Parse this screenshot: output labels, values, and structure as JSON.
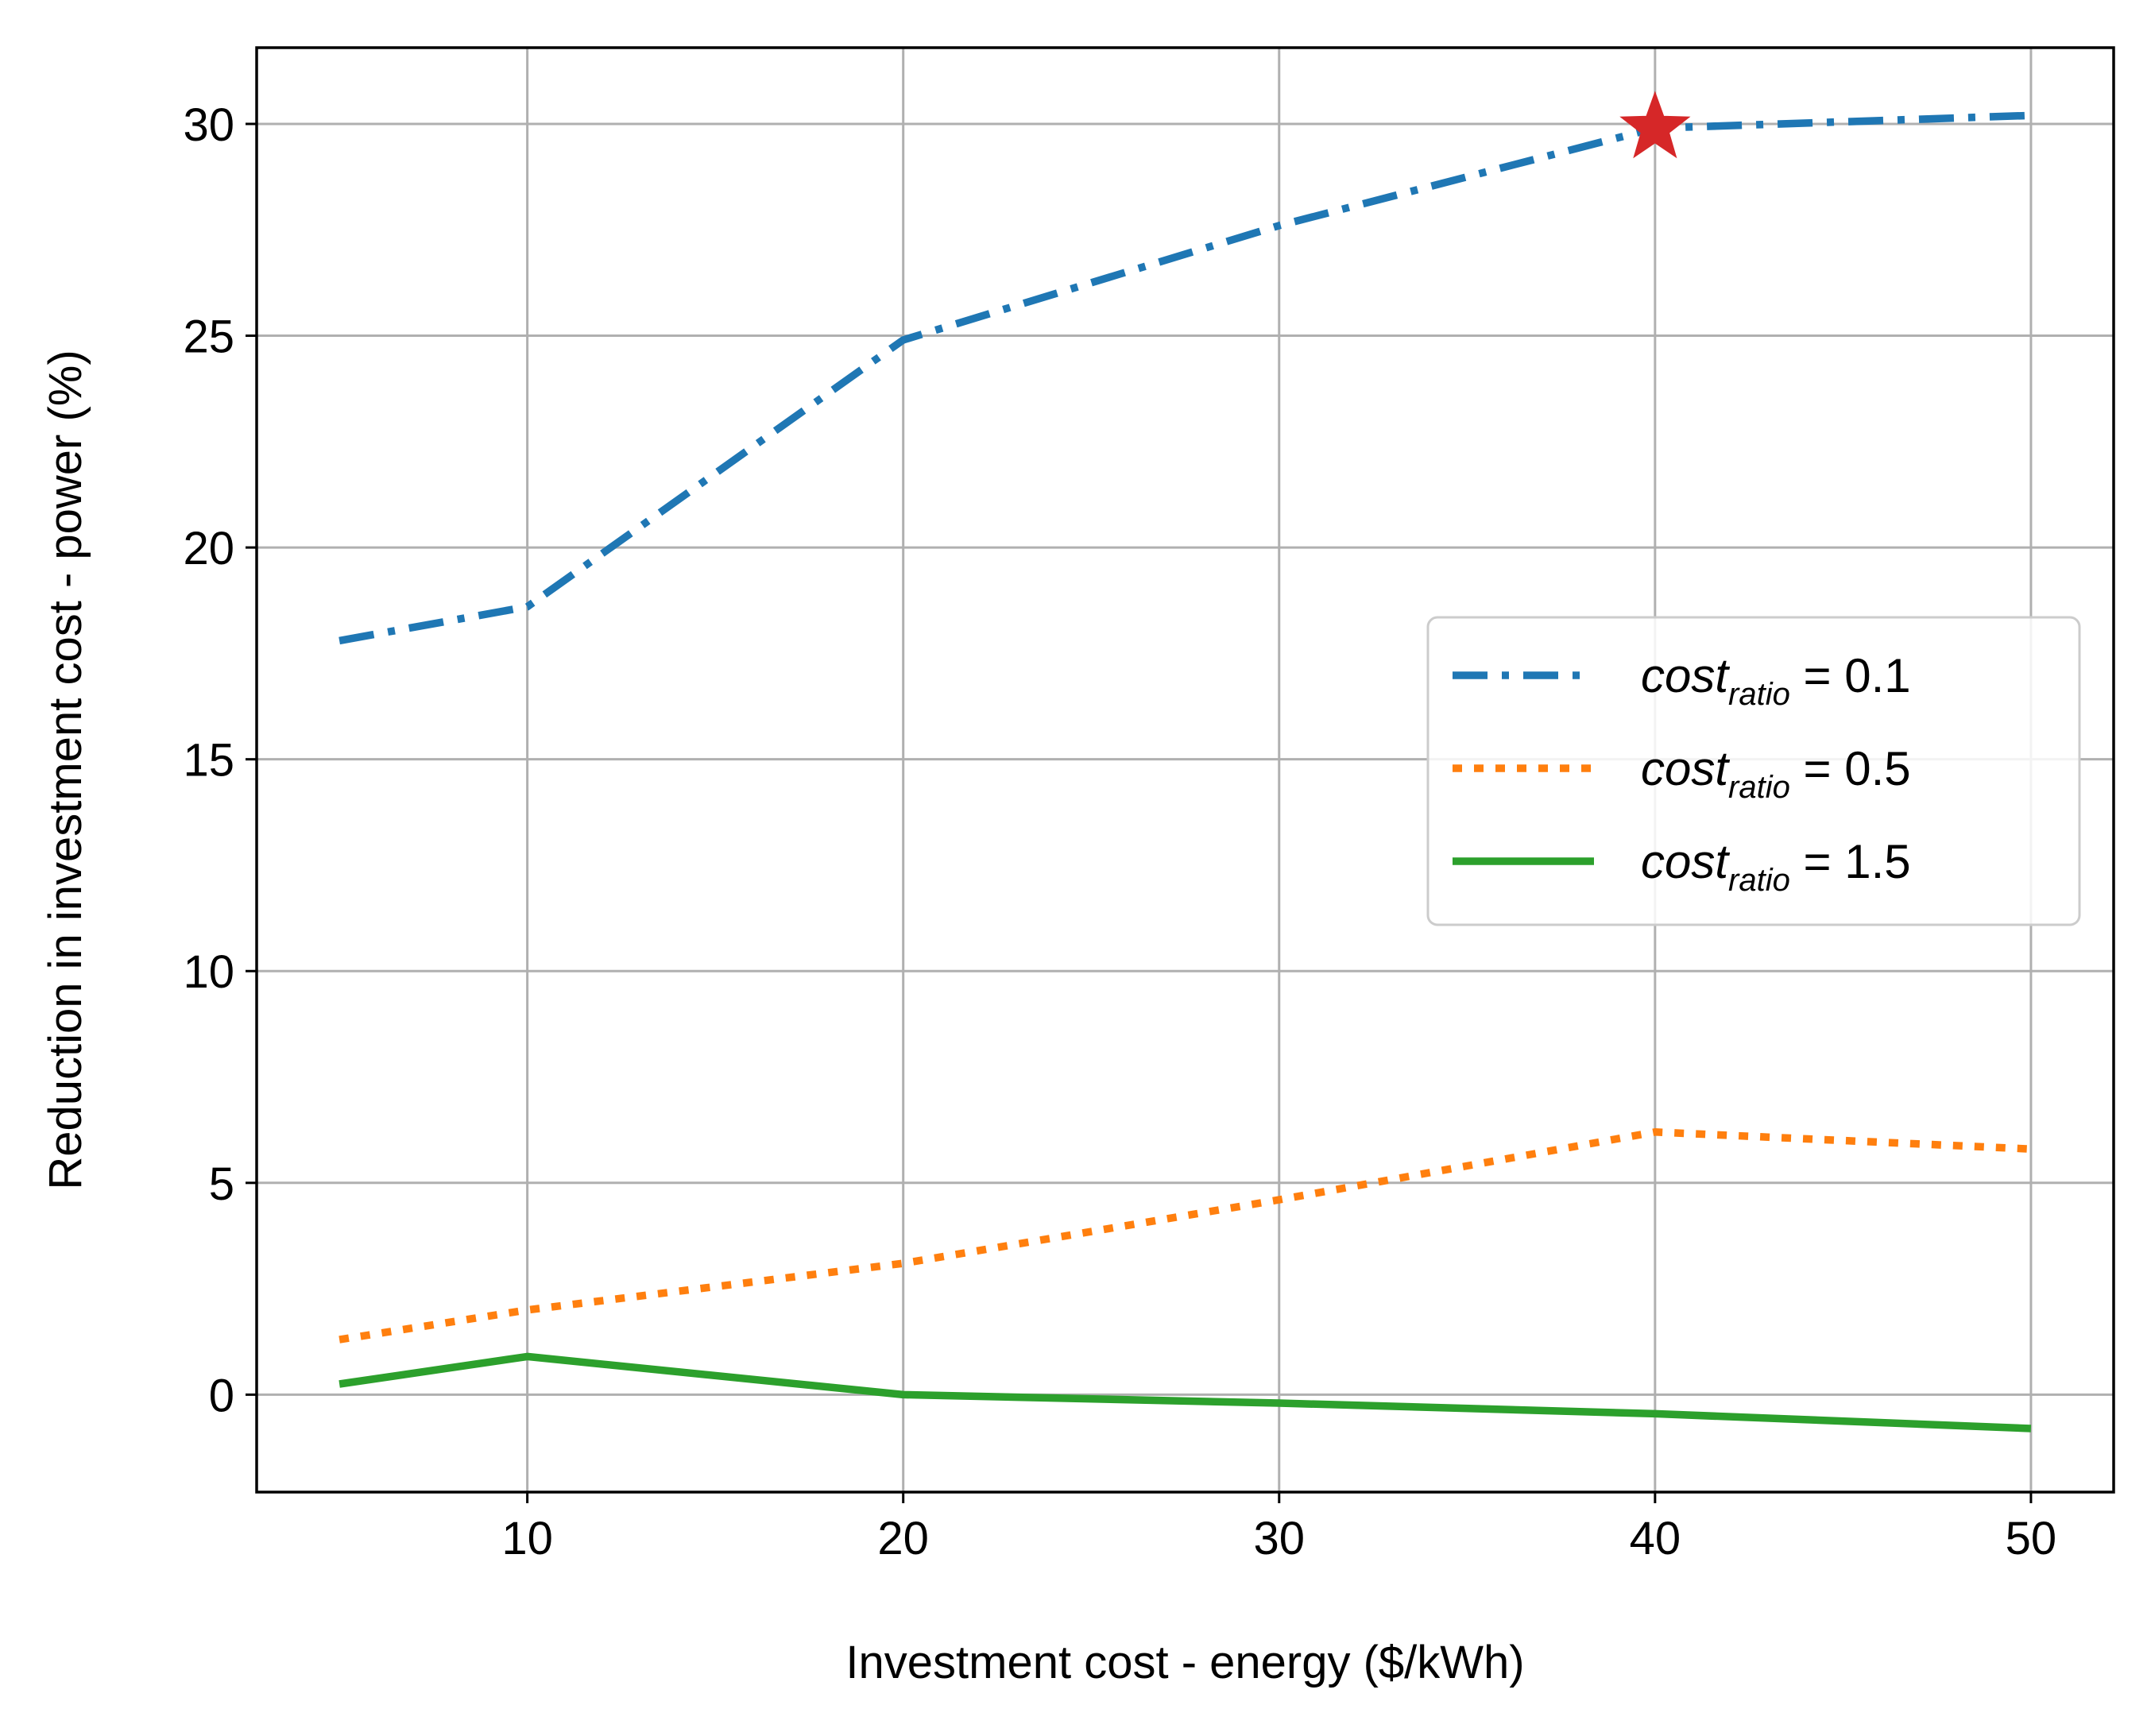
{
  "chart_data": {
    "type": "line",
    "title": "",
    "xlabel": "Investment cost - energy ($/kWh)",
    "ylabel": "Reduction in investment cost - power (%)",
    "xlim": [
      2.8,
      52.2
    ],
    "ylim": [
      -2.3,
      31.8
    ],
    "xticks": [
      10,
      20,
      30,
      40,
      50
    ],
    "yticks": [
      0,
      5,
      10,
      15,
      20,
      25,
      30
    ],
    "grid": true,
    "legend_position": "center-right",
    "series": [
      {
        "name": "cost_ratio = 0.1",
        "legend_main": "cost",
        "legend_sub": "ratio",
        "legend_value": " = 0.1",
        "color": "#1f77b4",
        "style": "dashdot",
        "x": [
          5,
          10,
          20,
          30,
          40,
          50
        ],
        "y": [
          17.8,
          18.6,
          24.9,
          27.6,
          29.9,
          30.2
        ]
      },
      {
        "name": "cost_ratio = 0.5",
        "legend_main": "cost",
        "legend_sub": "ratio",
        "legend_value": " = 0.5",
        "color": "#ff7f0e",
        "style": "dotted",
        "x": [
          5,
          10,
          20,
          30,
          40,
          50
        ],
        "y": [
          1.3,
          2.0,
          3.1,
          4.6,
          6.2,
          5.8
        ]
      },
      {
        "name": "cost_ratio = 1.5",
        "legend_main": "cost",
        "legend_sub": "ratio",
        "legend_value": " = 1.5",
        "color": "#2ca02c",
        "style": "solid",
        "x": [
          5,
          10,
          20,
          30,
          40,
          50
        ],
        "y": [
          0.25,
          0.9,
          0.0,
          -0.2,
          -0.45,
          -0.8
        ]
      }
    ],
    "markers": [
      {
        "shape": "star",
        "color": "#d62728",
        "x": 40,
        "y": 29.9
      }
    ]
  }
}
